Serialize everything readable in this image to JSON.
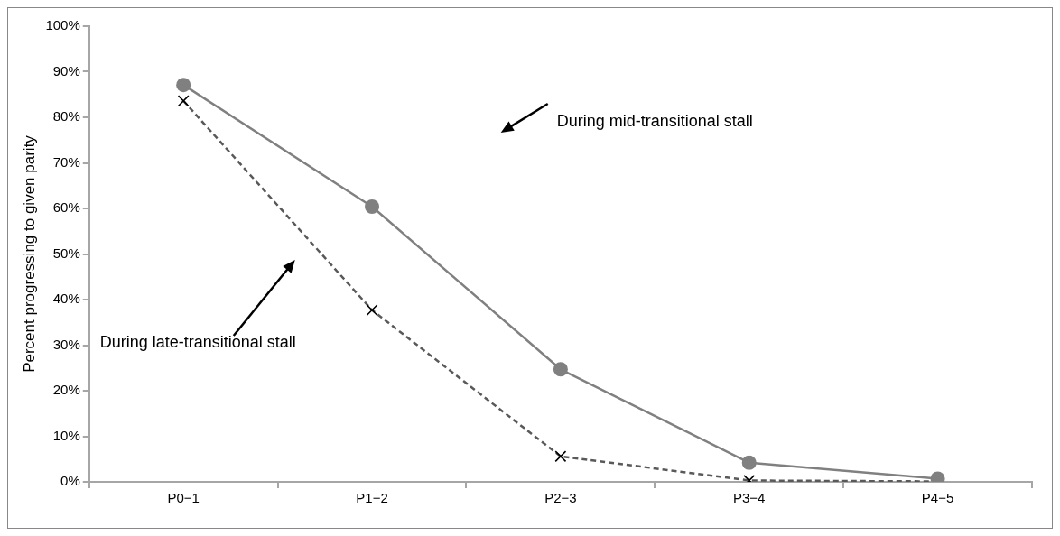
{
  "chart_data": {
    "type": "line",
    "ylabel": "Percent progressing to given parity",
    "categories": [
      "P0−1",
      "P1−2",
      "P2−3",
      "P3−4",
      "P4−5"
    ],
    "series": [
      {
        "color": "#808080",
        "values": [
          87.1,
          60.4,
          24.7,
          4.2,
          0.7
        ],
        "marker": "circle",
        "line_style": "solid"
      },
      {
        "color": "#595959",
        "values": [
          83.6,
          37.7,
          5.6,
          0.3,
          0.1
        ],
        "marker": "cross",
        "line_style": "dashed"
      }
    ],
    "annotations": [
      "During mid-transitional stall",
      "During late-transitional stall"
    ],
    "ylim": [
      0,
      100
    ],
    "yticks": [
      {
        "value": 0,
        "label": "0%"
      },
      {
        "value": 10,
        "label": "10%"
      },
      {
        "value": 20,
        "label": "20%"
      },
      {
        "value": 30,
        "label": "30%"
      },
      {
        "value": 40,
        "label": "40%"
      },
      {
        "value": 50,
        "label": "50%"
      },
      {
        "value": 60,
        "label": "60%"
      },
      {
        "value": 70,
        "label": "70%"
      },
      {
        "value": 80,
        "label": "80%"
      },
      {
        "value": 90,
        "label": "90%"
      },
      {
        "value": 100,
        "label": "100%"
      }
    ],
    "grid": false,
    "legend": false
  }
}
